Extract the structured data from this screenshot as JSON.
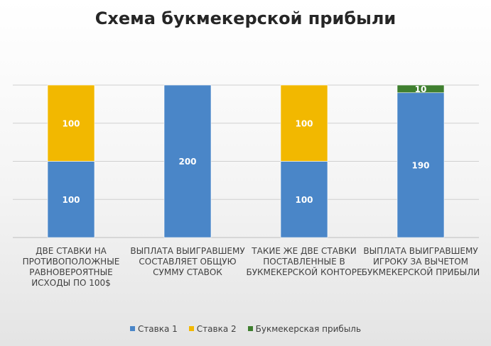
{
  "chart_data": {
    "type": "bar",
    "stacked": true,
    "title": "Схема букмекерской прибыли",
    "categories": [
      "ДВЕ СТАВКИ НА ПРОТИВОПОЛОЖНЫЕ РАВНОВЕРОЯТНЫЕ ИСХОДЫ ПО 100$",
      "ВЫПЛАТА ВЫИГРАВШЕМУ СОСТАВЛЯЕТ ОБЩУЮ СУММУ СТАВОК",
      "ТАКИЕ ЖЕ ДВЕ СТАВКИ ПОСТАВЛЕННЫЕ В БУКМЕКЕРСКОЙ КОНТОРЕ",
      "ВЫПЛАТА ВЫИГРАВШЕМУ ИГРОКУ ЗА ВЫЧЕТОМ БУКМЕКЕРСКОЙ ПРИБЫЛИ"
    ],
    "series": [
      {
        "name": "Ставка 1",
        "values": [
          100,
          200,
          100,
          190
        ],
        "color": "#4a86c8"
      },
      {
        "name": "Ставка 2",
        "values": [
          100,
          0,
          100,
          0
        ],
        "color": "#f2b800"
      },
      {
        "name": "Букмекерская прибыль",
        "values": [
          0,
          0,
          0,
          10
        ],
        "color": "#3f7f2f"
      }
    ],
    "ylim": [
      0,
      200
    ],
    "yticks": [
      0,
      50,
      100,
      150,
      200
    ],
    "grid": true,
    "legend": "bottom"
  }
}
